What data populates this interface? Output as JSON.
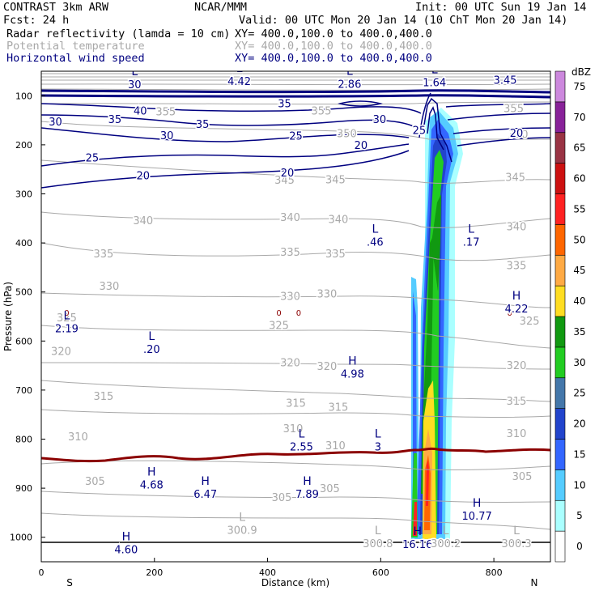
{
  "header": {
    "model": "CONTRAST  3km ARW",
    "org": "NCAR/MMM",
    "init": "Init: 00 UTC Sun 19 Jan 14",
    "fcst": "Fcst:   24 h",
    "valid": "Valid: 00 UTC Mon 20 Jan 14 (10 ChT Mon 20 Jan 14)",
    "field1_name": "Radar reflectivity (lamda = 10 cm)",
    "field1_xy": "XY= 400.0,100.0 to 400.0,400.0",
    "field2_name": "Potential temperature",
    "field2_xy": "XY= 400.0,100.0 to 400.0,400.0",
    "field3_name": "Horizontal wind speed",
    "field3_xy": "XY= 400.0,100.0 to 400.0,400.0"
  },
  "chart_data": {
    "type": "cross-section contour",
    "ylabel": "Pressure (hPa)",
    "xlabel": "Distance (km)",
    "left_end_label": "S",
    "right_end_label": "N",
    "xlim": [
      0,
      900
    ],
    "ylim": [
      1050,
      50
    ],
    "x_ticks": [
      0,
      200,
      400,
      600,
      800
    ],
    "y_ticks": [
      100,
      200,
      300,
      400,
      500,
      600,
      700,
      800,
      900,
      1000
    ],
    "colorbar": {
      "unit": "dBZ",
      "levels": [
        0,
        5,
        10,
        15,
        20,
        25,
        30,
        35,
        40,
        45,
        50,
        55,
        60,
        65,
        70,
        75
      ],
      "colors": [
        "#ffffff",
        "#aaffff",
        "#55ccff",
        "#3366ff",
        "#2244cc",
        "#4477aa",
        "#22cc22",
        "#119911",
        "#ffdd22",
        "#ffaa44",
        "#ff6600",
        "#ff2222",
        "#cc1111",
        "#993344",
        "#882299",
        "#cc88dd"
      ]
    },
    "wind_speed_contours": [
      {
        "label": "40",
        "x": 175,
        "p": 130
      },
      {
        "label": "35",
        "x": 430,
        "p": 115
      },
      {
        "label": "35",
        "x": 130,
        "p": 147
      },
      {
        "label": "35",
        "x": 285,
        "p": 157
      },
      {
        "label": "30",
        "x": 25,
        "p": 152
      },
      {
        "label": "30",
        "x": 222,
        "p": 180
      },
      {
        "label": "30",
        "x": 598,
        "p": 147
      },
      {
        "label": "25",
        "x": 90,
        "p": 226
      },
      {
        "label": "25",
        "x": 450,
        "p": 181
      },
      {
        "label": "25",
        "x": 668,
        "p": 170
      },
      {
        "label": "20",
        "x": 180,
        "p": 262
      },
      {
        "label": "20",
        "x": 435,
        "p": 256
      },
      {
        "label": "20",
        "x": 565,
        "p": 200
      },
      {
        "label": "20",
        "x": 840,
        "p": 175
      }
    ],
    "theta_contours": [
      {
        "label": "355",
        "x": 220,
        "p": 132
      },
      {
        "label": "355",
        "x": 495,
        "p": 130
      },
      {
        "label": "355",
        "x": 835,
        "p": 125
      },
      {
        "label": "350",
        "x": 540,
        "p": 176
      },
      {
        "label": "350",
        "x": 843,
        "p": 178
      },
      {
        "label": "345",
        "x": 430,
        "p": 271
      },
      {
        "label": "345",
        "x": 520,
        "p": 270
      },
      {
        "label": "345",
        "x": 838,
        "p": 265
      },
      {
        "label": "340",
        "x": 180,
        "p": 354
      },
      {
        "label": "340",
        "x": 440,
        "p": 347
      },
      {
        "label": "340",
        "x": 525,
        "p": 351
      },
      {
        "label": "340",
        "x": 840,
        "p": 366
      },
      {
        "label": "335",
        "x": 110,
        "p": 421
      },
      {
        "label": "335",
        "x": 440,
        "p": 418
      },
      {
        "label": "335",
        "x": 520,
        "p": 421
      },
      {
        "label": "335",
        "x": 840,
        "p": 445
      },
      {
        "label": "330",
        "x": 120,
        "p": 487
      },
      {
        "label": "330",
        "x": 440,
        "p": 508
      },
      {
        "label": "330",
        "x": 505,
        "p": 503
      },
      {
        "label": "325",
        "x": 45,
        "p": 552
      },
      {
        "label": "325",
        "x": 420,
        "p": 567
      },
      {
        "label": "325",
        "x": 863,
        "p": 558
      },
      {
        "label": "320",
        "x": 35,
        "p": 620
      },
      {
        "label": "320",
        "x": 440,
        "p": 643
      },
      {
        "label": "320",
        "x": 505,
        "p": 651
      },
      {
        "label": "320",
        "x": 840,
        "p": 649
      },
      {
        "label": "315",
        "x": 110,
        "p": 712
      },
      {
        "label": "315",
        "x": 450,
        "p": 726
      },
      {
        "label": "315",
        "x": 525,
        "p": 734
      },
      {
        "label": "315",
        "x": 840,
        "p": 722
      },
      {
        "label": "310",
        "x": 65,
        "p": 794
      },
      {
        "label": "310",
        "x": 445,
        "p": 778
      },
      {
        "label": "310",
        "x": 520,
        "p": 812
      },
      {
        "label": "310",
        "x": 840,
        "p": 788
      },
      {
        "label": "305",
        "x": 95,
        "p": 885
      },
      {
        "label": "305",
        "x": 425,
        "p": 918
      },
      {
        "label": "305",
        "x": 510,
        "p": 900
      },
      {
        "label": "305",
        "x": 850,
        "p": 875
      }
    ],
    "freezing_level_label": "0",
    "extrema": [
      {
        "type": "L",
        "value": "30",
        "x": 165,
        "p": 75
      },
      {
        "type": "L",
        "value": "4.42",
        "x": 350,
        "p": 68
      },
      {
        "type": "L",
        "value": "2.86",
        "x": 545,
        "p": 74
      },
      {
        "type": "L",
        "value": "1.64",
        "x": 695,
        "p": 71
      },
      {
        "type": "L",
        "value": "3.45",
        "x": 820,
        "p": 66
      },
      {
        "type": "L",
        "value": ".46",
        "x": 590,
        "p": 396
      },
      {
        "type": "L",
        "value": ".17",
        "x": 760,
        "p": 396
      },
      {
        "type": "H",
        "value": "4.22",
        "x": 840,
        "p": 532
      },
      {
        "type": "L",
        "value": "2.19",
        "x": 45,
        "p": 572
      },
      {
        "type": "L",
        "value": ".20",
        "x": 195,
        "p": 614
      },
      {
        "type": "H",
        "value": "4.98",
        "x": 550,
        "p": 665
      },
      {
        "type": "L",
        "value": "2.55",
        "x": 460,
        "p": 813
      },
      {
        "type": "L",
        "value": "3",
        "x": 595,
        "p": 813
      },
      {
        "type": "H",
        "value": "4.68",
        "x": 195,
        "p": 891
      },
      {
        "type": "H",
        "value": "6.47",
        "x": 290,
        "p": 910
      },
      {
        "type": "H",
        "value": "7.89",
        "x": 470,
        "p": 910
      },
      {
        "type": "H",
        "value": "10.77",
        "x": 770,
        "p": 954
      },
      {
        "type": "H",
        "value": "4.60",
        "x": 150,
        "p": 1023
      },
      {
        "type": "L",
        "value": "300.9",
        "x": 355,
        "p": 983
      },
      {
        "type": "L",
        "value": "300.8",
        "x": 595,
        "p": 1010
      },
      {
        "type": "H",
        "value": "16.16",
        "x": 665,
        "p": 1012
      },
      {
        "type": "L",
        "value": "300.2",
        "x": 715,
        "p": 1010
      },
      {
        "type": "L",
        "value": "300.3",
        "x": 840,
        "p": 1010
      }
    ]
  }
}
